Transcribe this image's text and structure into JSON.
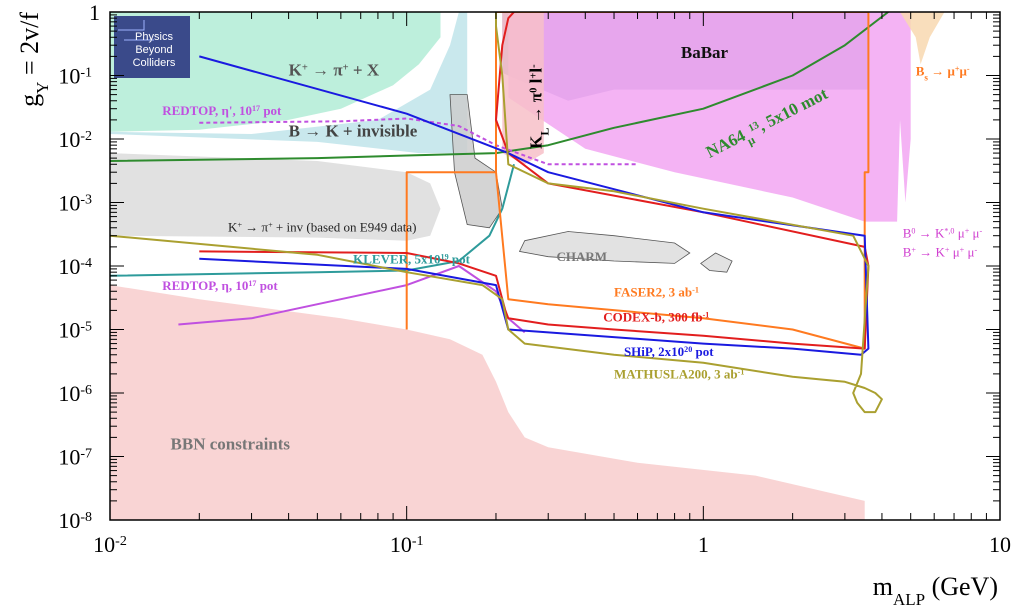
{
  "chart_data": {
    "type": "area",
    "xlabel": "m",
    "xlabel_sub": "ALP",
    "xlabel_unit": " (GeV)",
    "ylabel": "g",
    "ylabel_sub": "Y",
    "ylabel_rest": " = 2v/f",
    "x_scale": "log",
    "y_scale": "log",
    "xlim": [
      0.01,
      10
    ],
    "ylim": [
      1e-08,
      1
    ],
    "x_ticks": [
      {
        "value": 0.01,
        "base": "10",
        "exp": "-2"
      },
      {
        "value": 0.1,
        "base": "10",
        "exp": "-1"
      },
      {
        "value": 1,
        "base": "1",
        "exp": ""
      },
      {
        "value": 10,
        "base": "10",
        "exp": ""
      }
    ],
    "y_ticks": [
      {
        "value": 1,
        "base": "1",
        "exp": ""
      },
      {
        "value": 0.1,
        "base": "10",
        "exp": "-1"
      },
      {
        "value": 0.01,
        "base": "10",
        "exp": "-2"
      },
      {
        "value": 0.001,
        "base": "10",
        "exp": "-3"
      },
      {
        "value": 0.0001,
        "base": "10",
        "exp": "-4"
      },
      {
        "value": 1e-05,
        "base": "10",
        "exp": "-5"
      },
      {
        "value": 1e-06,
        "base": "10",
        "exp": "-6"
      },
      {
        "value": 1e-07,
        "base": "10",
        "exp": "-7"
      },
      {
        "value": 1e-08,
        "base": "10",
        "exp": "-8"
      }
    ],
    "grid": false,
    "logo": [
      "Physics",
      "Beyond",
      "Colliders"
    ],
    "regions": [
      {
        "name": "BBN constraints",
        "color": "#f8cccc",
        "points": [
          [
            0.01,
            1e-08
          ],
          [
            0.01,
            5e-05
          ],
          [
            0.02,
            3e-05
          ],
          [
            0.06,
            1.5e-05
          ],
          [
            0.1,
            1e-05
          ],
          [
            0.14,
            7e-06
          ],
          [
            0.18,
            4e-06
          ],
          [
            0.2,
            1.5e-06
          ],
          [
            0.22,
            5e-07
          ],
          [
            0.25,
            2e-07
          ],
          [
            0.3,
            1.4e-07
          ],
          [
            0.6,
            8e-08
          ],
          [
            1.5,
            5e-08
          ],
          [
            3.5,
            2e-08
          ],
          [
            3.5,
            1e-08
          ]
        ]
      },
      {
        "name": "K+ -> pi+ + X",
        "color": "#b2ecd6",
        "points": [
          [
            0.01,
            1
          ],
          [
            0.13,
            1
          ],
          [
            0.13,
            0.4
          ],
          [
            0.11,
            0.15
          ],
          [
            0.09,
            0.07
          ],
          [
            0.06,
            0.03
          ],
          [
            0.04,
            0.02
          ],
          [
            0.02,
            0.014
          ],
          [
            0.01,
            0.013
          ]
        ]
      },
      {
        "name": "B -> K + invisible",
        "color": "#bfe4ea",
        "points": [
          [
            0.01,
            0.013
          ],
          [
            0.03,
            0.012
          ],
          [
            0.08,
            0.02
          ],
          [
            0.12,
            0.06
          ],
          [
            0.14,
            0.3
          ],
          [
            0.15,
            1
          ],
          [
            0.16,
            1
          ],
          [
            0.16,
            0.006
          ],
          [
            0.11,
            0.006
          ],
          [
            0.05,
            0.009
          ],
          [
            0.01,
            0.012
          ]
        ]
      },
      {
        "name": "K+ -> pi+ + inv",
        "color": "#dcdcdc",
        "points": [
          [
            0.01,
            0.006
          ],
          [
            0.05,
            0.0045
          ],
          [
            0.1,
            0.003
          ],
          [
            0.12,
            0.002
          ],
          [
            0.13,
            0.0008
          ],
          [
            0.12,
            0.0003
          ],
          [
            0.1,
            0.00025
          ],
          [
            0.05,
            0.00028
          ],
          [
            0.01,
            0.0003
          ]
        ]
      },
      {
        "name": "grey-band",
        "color": "#cccccc",
        "points": [
          [
            0.14,
            0.05
          ],
          [
            0.16,
            0.05
          ],
          [
            0.17,
            0.005
          ],
          [
            0.2,
            0.003
          ],
          [
            0.21,
            0.0008
          ],
          [
            0.19,
            0.0004
          ],
          [
            0.16,
            0.00045
          ],
          [
            0.145,
            0.003
          ]
        ]
      },
      {
        "name": "CHARM",
        "color": "#dddddd",
        "points": [
          [
            0.25,
            0.00025
          ],
          [
            0.35,
            0.00035
          ],
          [
            0.5,
            0.0003
          ],
          [
            0.8,
            0.00023
          ],
          [
            0.9,
            0.00016
          ],
          [
            0.8,
            0.00011
          ],
          [
            0.5,
            0.00012
          ],
          [
            0.3,
            0.00014
          ],
          [
            0.24,
            0.00017
          ]
        ]
      },
      {
        "name": "CHARM-blob",
        "color": "#dddddd",
        "points": [
          [
            0.98,
            0.00011
          ],
          [
            1.1,
            0.00016
          ],
          [
            1.25,
            0.00012
          ],
          [
            1.2,
            8e-05
          ],
          [
            1.05,
            8.5e-05
          ]
        ]
      },
      {
        "name": "BaBar",
        "color": "#9696c6",
        "points": [
          [
            0.21,
            0.11
          ],
          [
            0.35,
            0.04
          ],
          [
            0.5,
            0.06
          ],
          [
            1,
            0.06
          ],
          [
            2,
            0.06
          ],
          [
            3.6,
            0.06
          ],
          [
            3.6,
            1
          ],
          [
            0.21,
            1
          ]
        ]
      },
      {
        "name": "magenta-region",
        "color": "#f2a6f2",
        "points": [
          [
            0.22,
            0.045
          ],
          [
            0.4,
            0.007
          ],
          [
            0.8,
            0.003
          ],
          [
            2,
            0.0012
          ],
          [
            3.5,
            0.0005
          ],
          [
            4.5,
            0.0005
          ],
          [
            4.6,
            0.02
          ],
          [
            4.8,
            0.001
          ],
          [
            5,
            0.01
          ],
          [
            5,
            1
          ],
          [
            0.22,
            1
          ]
        ]
      },
      {
        "name": "KL-region",
        "color": "#f7c0c8",
        "points": [
          [
            0.21,
            1
          ],
          [
            0.29,
            1
          ],
          [
            0.29,
            0.006
          ],
          [
            0.25,
            0.004
          ],
          [
            0.21,
            0.006
          ]
        ]
      },
      {
        "name": "Bs-region",
        "color": "#f8d8b0",
        "points": [
          [
            4.6,
            1
          ],
          [
            5.2,
            0.4
          ],
          [
            5.4,
            0.15
          ],
          [
            5.8,
            0.4
          ],
          [
            6.5,
            1
          ]
        ]
      }
    ],
    "series": [
      {
        "label": "NA64",
        "color": "#2e8b2e",
        "x": [
          0.01,
          0.05,
          0.1,
          0.2,
          0.3,
          0.5,
          1,
          2,
          3,
          4.2
        ],
        "y": [
          0.0045,
          0.005,
          0.0055,
          0.006,
          0.008,
          0.015,
          0.03,
          0.1,
          0.3,
          1
        ]
      },
      {
        "label": "KLEVER",
        "color": "#2e9b9b",
        "x": [
          0.01,
          0.05,
          0.1,
          0.15,
          0.19,
          0.21,
          0.23
        ],
        "y": [
          7e-05,
          8e-05,
          8.5e-05,
          0.00012,
          0.0003,
          0.0008,
          0.004
        ]
      },
      {
        "label": "REDTOP-eta-prime",
        "color": "#c050e0",
        "dash": true,
        "x": [
          0.02,
          0.06,
          0.1,
          0.15,
          0.2,
          0.3,
          0.4,
          0.6
        ],
        "y": [
          0.018,
          0.019,
          0.021,
          0.016,
          0.008,
          0.004,
          0.004,
          0.004
        ]
      },
      {
        "label": "REDTOP-eta",
        "color": "#c050e0",
        "x": [
          0.017,
          0.03,
          0.06,
          0.1,
          0.15,
          0.2,
          0.22,
          0.25
        ],
        "y": [
          1.2e-05,
          1.5e-05,
          3e-05,
          5e-05,
          0.0001,
          4e-05,
          1.5e-05,
          9e-06
        ]
      },
      {
        "label": "FASER2",
        "color": "#ff7a20",
        "x": [
          0.1,
          0.1,
          0.2,
          0.22,
          0.3,
          1,
          2,
          3.5,
          3.5,
          3.6,
          3.6,
          0.2,
          0.2,
          0.1
        ],
        "y": [
          1e-05,
          0.003,
          0.003,
          3e-05,
          2.5e-05,
          1.5e-05,
          1e-05,
          5e-06,
          0.003,
          0.003,
          1,
          1,
          0.003,
          0.003
        ]
      },
      {
        "label": "CODEX-b",
        "color": "#e21e1e",
        "x": [
          0.02,
          0.1,
          0.15,
          0.2,
          0.215,
          0.22,
          0.3,
          0.5,
          1,
          2,
          3.5,
          3.6,
          3.5,
          1,
          0.3,
          0.22,
          0.2,
          0.21,
          0.22,
          0.23
        ],
        "y": [
          0.00017,
          0.00016,
          0.00011,
          7e-05,
          2e-05,
          1.5e-05,
          1.2e-05,
          1e-05,
          8e-06,
          6e-06,
          5e-06,
          0.0001,
          0.0002,
          0.0007,
          0.002,
          0.006,
          0.02,
          0.3,
          0.8,
          1
        ]
      },
      {
        "label": "SHiP",
        "color": "#1a1ae0",
        "x": [
          0.02,
          0.1,
          0.2,
          0.22,
          0.3,
          1,
          2,
          3.4,
          3.6,
          3.5,
          1,
          0.3,
          0.22,
          0.1,
          0.02
        ],
        "y": [
          0.00013,
          9e-05,
          5e-05,
          1e-05,
          9e-06,
          6e-06,
          5e-06,
          4e-06,
          5e-06,
          0.0003,
          0.0007,
          0.003,
          0.006,
          0.025,
          0.2
        ]
      },
      {
        "label": "MATHUSLA200",
        "color": "#aaa030",
        "x": [
          0.01,
          0.05,
          0.1,
          0.18,
          0.21,
          0.22,
          0.25,
          0.5,
          1,
          2,
          3,
          3.5,
          3.8,
          4,
          3.8,
          3.5,
          3.3,
          3.2,
          3.4,
          3.6,
          3.2,
          1,
          0.5,
          0.3,
          0.22,
          0.21,
          0.2,
          0.2
        ],
        "y": [
          0.0003,
          0.00015,
          8e-05,
          5e-05,
          3e-05,
          1e-05,
          6e-06,
          4e-06,
          3e-06,
          1.8e-06,
          1.5e-06,
          1.2e-06,
          1e-06,
          8e-07,
          5e-07,
          5e-07,
          7e-07,
          1e-06,
          2e-06,
          0.0001,
          0.0003,
          0.0008,
          0.0015,
          0.002,
          0.004,
          0.1,
          0.6,
          1
        ]
      }
    ],
    "labels": [
      {
        "id": "kpix",
        "text": "K",
        "sup1": "+",
        "mid": " → π",
        "sup2": "+",
        "tail": " + X",
        "x": 0.04,
        "y": 0.1,
        "color": "#555555",
        "cls": "ann-big"
      },
      {
        "id": "bkinv",
        "text": "B → K + invisible",
        "x": 0.04,
        "y": 0.011,
        "color": "#444444",
        "cls": "ann-big"
      },
      {
        "id": "redtop1",
        "text": "REDTOP, η', 10",
        "sup": "17",
        "tail": " pot",
        "x": 0.015,
        "y": 0.024,
        "color": "#c050e0",
        "cls": "ann"
      },
      {
        "id": "kpinv",
        "text": "K",
        "sup1": "+",
        "mid": " → π",
        "sup2": "+",
        "tail": " + inv (based on E949 data)",
        "x": 0.025,
        "y": 0.00035,
        "color": "#222222",
        "cls": "ann-plain"
      },
      {
        "id": "klever",
        "text": "KLEVER, 5x10",
        "sup": "19",
        "tail": " pot",
        "x": 0.066,
        "y": 0.00011,
        "color": "#2e9b9b",
        "cls": "ann"
      },
      {
        "id": "redtop2",
        "text": "REDTOP, η, 10",
        "sup": "17",
        "tail": " pot",
        "x": 0.015,
        "y": 4.2e-05,
        "color": "#c050e0",
        "cls": "ann"
      },
      {
        "id": "bbn",
        "text": "BBN constraints",
        "x": 0.016,
        "y": 1.3e-07,
        "color": "#777777",
        "cls": "ann-big"
      },
      {
        "id": "charm",
        "text": "CHARM",
        "x": 0.32,
        "y": 0.00012,
        "color": "#777777",
        "cls": "ann"
      },
      {
        "id": "faser",
        "text": "FASER2, 3 ab",
        "sup": "-1",
        "x": 0.5,
        "y": 3.3e-05,
        "color": "#ff7a20",
        "cls": "ann"
      },
      {
        "id": "codex",
        "text": "CODEX-b, 300 fb",
        "sup": "-1",
        "x": 0.46,
        "y": 1.33e-05,
        "color": "#e21e1e",
        "cls": "ann"
      },
      {
        "id": "ship",
        "text": "SHiP, 2x10",
        "sup": "20",
        "tail": " pot",
        "x": 0.54,
        "y": 3.8e-06,
        "color": "#1a1ae0",
        "cls": "ann"
      },
      {
        "id": "math",
        "text": "MATHUSLA200, 3 ab",
        "sup": "-1",
        "x": 0.5,
        "y": 1.7e-06,
        "color": "#aaa030",
        "cls": "ann"
      },
      {
        "id": "babar",
        "text": "BaBar",
        "x": 0.84,
        "y": 0.19,
        "color": "#111111",
        "cls": "ann-big"
      },
      {
        "id": "bs",
        "text": "B",
        "sub": "s",
        "mid": " → μ",
        "sup2": "+",
        "tail": "μ",
        "sup3": "-",
        "x": 5.2,
        "y": 0.1,
        "color": "#ff7a20",
        "cls": "ann"
      },
      {
        "id": "bkstar",
        "text": "B",
        "sup1": "0",
        "mid": " → K",
        "sup2": "*,0",
        "tail": " μ",
        "sup3": "+",
        "tail2": " μ",
        "sup4": "-",
        "x": 4.7,
        "y": 0.00028,
        "color": "#d040d0",
        "cls": "ann-plain"
      },
      {
        "id": "bkplus",
        "text": "B",
        "sup1": "+",
        "mid": " → K",
        "sup2": "+",
        "tail": " μ",
        "sup3": "+",
        "tail2": " μ",
        "sup4": "-",
        "x": 4.7,
        "y": 0.00014,
        "color": "#d040d0",
        "cls": "ann-plain"
      }
    ],
    "rotated_labels": [
      {
        "id": "na64",
        "text": "NA64",
        "sub": "μ",
        "tail": ", 5x10",
        "sup": "13",
        "tail2": " mot",
        "x": 1.05,
        "y": 0.005,
        "angle": -27,
        "color": "#2e8b2e"
      },
      {
        "id": "kl",
        "text": "K",
        "sub": "L",
        "mid": " → π",
        "sup2": "0",
        "tail": " l",
        "sup3": "+",
        "tail2": "l",
        "sup4": "-",
        "x": 0.285,
        "y": 0.007,
        "angle": -90,
        "color": "#000000"
      }
    ]
  }
}
